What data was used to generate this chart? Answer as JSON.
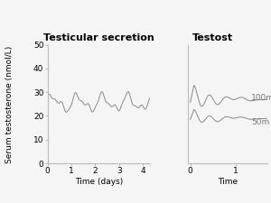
{
  "title1": "Testicular secretion",
  "title2": "Testost",
  "ylabel": "Serum testosterone (nmol/L)",
  "xlabel1": "Time (days)",
  "xlabel2": "Time",
  "ylim": [
    0,
    50
  ],
  "yticks": [
    0,
    10,
    20,
    30,
    40,
    50
  ],
  "xlim1": [
    0,
    4.3
  ],
  "xticks1": [
    0,
    1,
    2,
    3,
    4
  ],
  "xlim2": [
    -0.05,
    1.7
  ],
  "xticks2": [
    0,
    1
  ],
  "label_100m": "100m",
  "label_50m": "50m",
  "line_color": "#888888",
  "background": "#f5f5f5",
  "title_fontsize": 8,
  "label_fontsize": 6.5,
  "tick_fontsize": 6.5
}
